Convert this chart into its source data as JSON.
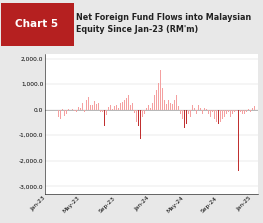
{
  "title_box_label": "Chart 5",
  "title_box_color": "#b52020",
  "title_text": "Net Foreign Fund Flows into Malaysian\nEquity Since Jan-23 (RM'm)",
  "background_color": "#e8e8e8",
  "plot_bg_color": "#ffffff",
  "bar_color_light": "#f4a0a0",
  "bar_color_dark": "#c03030",
  "ylim": [
    -3300,
    2200
  ],
  "yticks": [
    -3000,
    -2000,
    -1000,
    0,
    1000,
    2000
  ],
  "xlabel_ticks": [
    "Jan-23",
    "May-23",
    "Sep-23",
    "Jan-24",
    "May-24",
    "Sep-24",
    "Jan-25"
  ],
  "tick_positions": [
    0,
    17,
    35,
    52,
    69,
    86,
    103
  ],
  "values": [
    -20,
    -10,
    5,
    -30,
    -20,
    -15,
    -280,
    -350,
    40,
    -260,
    -180,
    20,
    -10,
    20,
    -50,
    -100,
    90,
    70,
    280,
    -80,
    380,
    480,
    170,
    180,
    350,
    240,
    280,
    -90,
    -100,
    -650,
    -200,
    90,
    180,
    40,
    130,
    180,
    80,
    280,
    320,
    380,
    460,
    560,
    180,
    270,
    -130,
    -480,
    -640,
    -1150,
    -270,
    -180,
    80,
    180,
    80,
    280,
    560,
    760,
    1050,
    1550,
    840,
    380,
    220,
    370,
    280,
    220,
    370,
    560,
    150,
    -180,
    -350,
    -720,
    -560,
    -180,
    -270,
    170,
    80,
    -180,
    170,
    80,
    -180,
    80,
    40,
    -180,
    -270,
    -100,
    -380,
    -470,
    -560,
    -470,
    -380,
    -280,
    -180,
    -100,
    -280,
    -180,
    -100,
    -50,
    -2400,
    -100,
    -150,
    -180,
    -100,
    40,
    -80,
    80,
    150
  ]
}
